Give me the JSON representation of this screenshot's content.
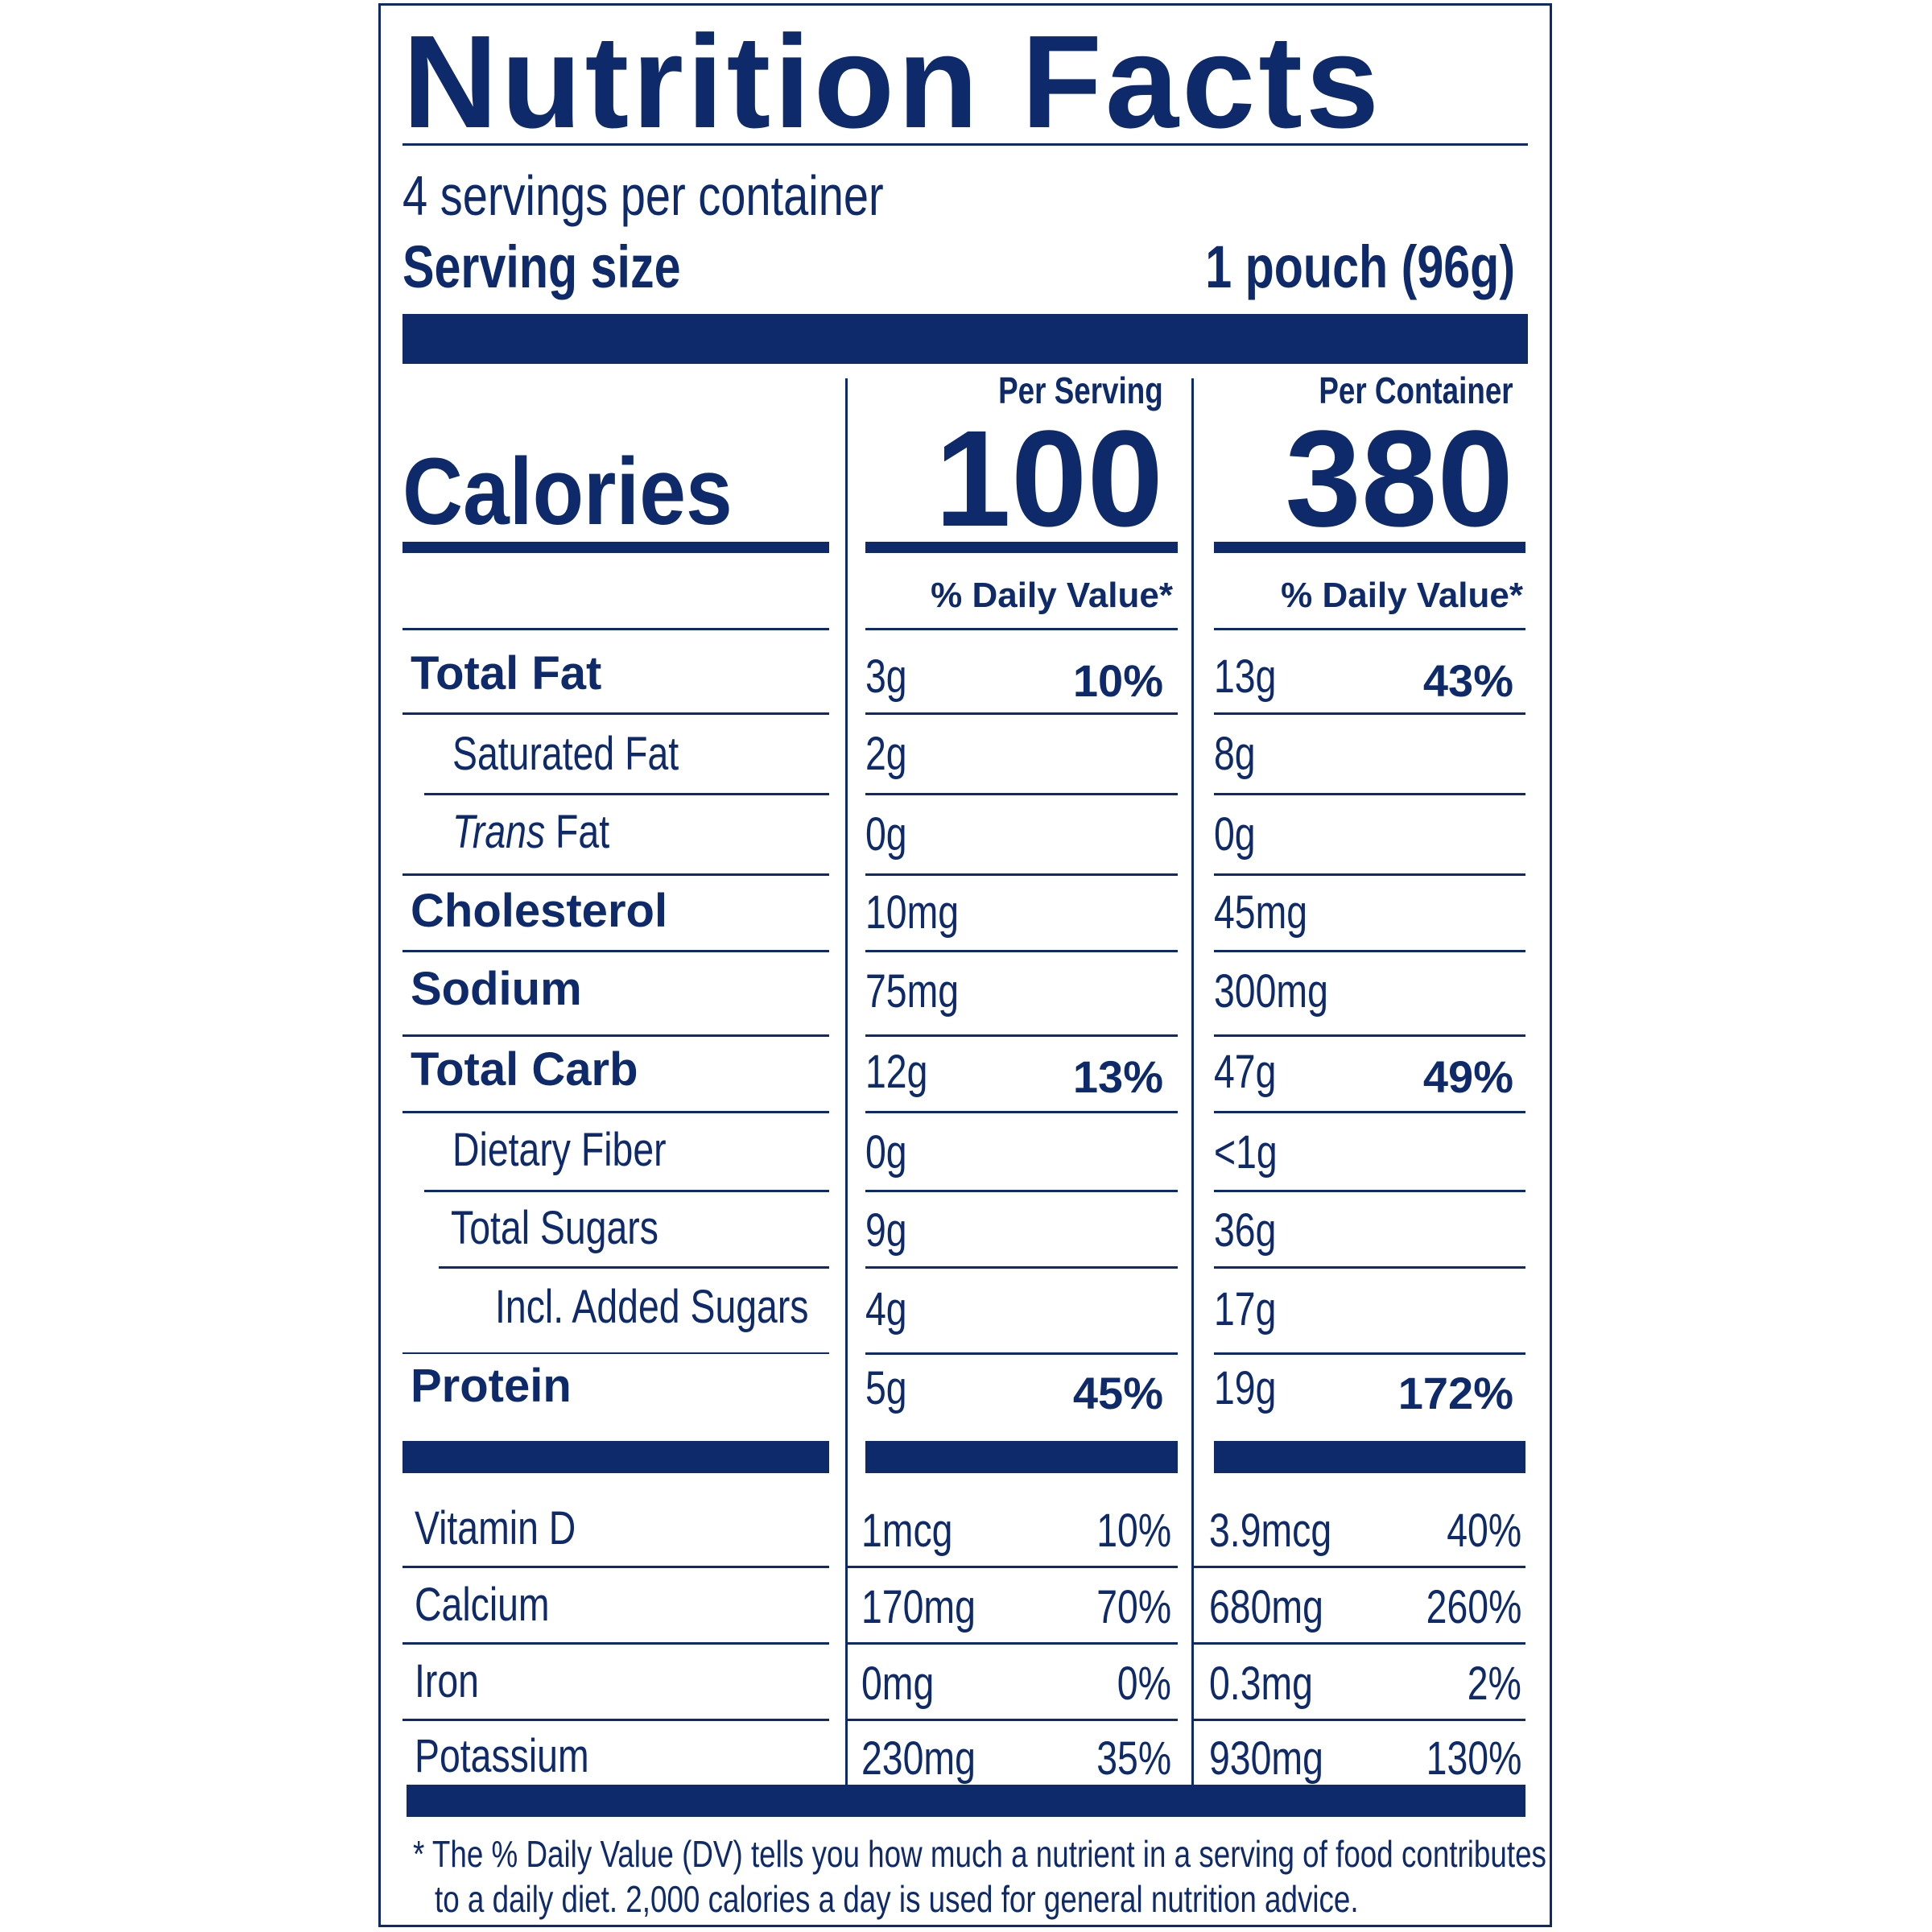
{
  "title": "Nutrition Facts",
  "servings_per_container": "4 servings per container",
  "serving_size_label": "Serving size",
  "serving_size_value": "1 pouch (96g)",
  "calories": {
    "label": "Calories",
    "per_serving_label": "Per Serving",
    "per_container_label": "Per Container",
    "per_serving": "100",
    "per_container": "380"
  },
  "dv_header": "% Daily Value*",
  "nutrients": [
    {
      "label": "Total Fat",
      "serving": "3g",
      "serving_dv": "10%",
      "container": "13g",
      "container_dv": "43%"
    },
    {
      "label": "Saturated Fat",
      "serving": "2g",
      "serving_dv": "",
      "container": "8g",
      "container_dv": ""
    },
    {
      "label_italic": "Trans",
      "label_rest": " Fat",
      "serving": "0g",
      "serving_dv": "",
      "container": "0g",
      "container_dv": ""
    },
    {
      "label": "Cholesterol",
      "serving": "10mg",
      "serving_dv": "",
      "container": "45mg",
      "container_dv": ""
    },
    {
      "label": "Sodium",
      "serving": "75mg",
      "serving_dv": "",
      "container": "300mg",
      "container_dv": ""
    },
    {
      "label": "Total Carb",
      "serving": "12g",
      "serving_dv": "13%",
      "container": "47g",
      "container_dv": "49%"
    },
    {
      "label": "Dietary Fiber",
      "serving": "0g",
      "serving_dv": "",
      "container": "<1g",
      "container_dv": ""
    },
    {
      "label": "Total Sugars",
      "serving": "9g",
      "serving_dv": "",
      "container": "36g",
      "container_dv": ""
    },
    {
      "label": "Incl. Added Sugars",
      "serving": "4g",
      "serving_dv": "",
      "container": "17g",
      "container_dv": ""
    },
    {
      "label": "Protein",
      "serving": "5g",
      "serving_dv": "45%",
      "container": "19g",
      "container_dv": "172%"
    }
  ],
  "vitamins": [
    {
      "label": "Vitamin D",
      "serving": "1mcg",
      "serving_dv": "10%",
      "container": "3.9mcg",
      "container_dv": "40%"
    },
    {
      "label": "Calcium",
      "serving": "170mg",
      "serving_dv": "70%",
      "container": "680mg",
      "container_dv": "260%"
    },
    {
      "label": "Iron",
      "serving": "0mg",
      "serving_dv": "0%",
      "container": "0.3mg",
      "container_dv": "2%"
    },
    {
      "label": "Potassium",
      "serving": "230mg",
      "serving_dv": "35%",
      "container": "930mg",
      "container_dv": "130%"
    }
  ],
  "footnote_line1": "* The % Daily Value (DV) tells you how much a nutrient in a serving of food contributes",
  "footnote_line2": "to a daily diet. 2,000 calories a day is used for general nutrition advice.",
  "colors": {
    "ink": "#0e2a6b",
    "background": "#ffffff"
  }
}
